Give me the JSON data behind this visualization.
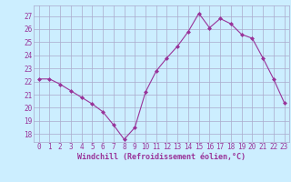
{
  "x": [
    0,
    1,
    2,
    3,
    4,
    5,
    6,
    7,
    8,
    9,
    10,
    11,
    12,
    13,
    14,
    15,
    16,
    17,
    18,
    19,
    20,
    21,
    22,
    23
  ],
  "y": [
    22.2,
    22.2,
    21.8,
    21.3,
    20.8,
    20.3,
    19.7,
    18.7,
    17.6,
    18.5,
    21.2,
    22.8,
    23.8,
    24.7,
    25.8,
    27.2,
    26.1,
    26.8,
    26.4,
    25.6,
    25.3,
    23.8,
    22.2,
    20.4
  ],
  "line_color": "#993399",
  "marker": "D",
  "marker_size": 2,
  "bg_color": "#cceeff",
  "grid_color": "#aaaacc",
  "xlabel": "Windchill (Refroidissement éolien,°C)",
  "xlabel_color": "#993399",
  "tick_color": "#993399",
  "ylabel_ticks": [
    18,
    19,
    20,
    21,
    22,
    23,
    24,
    25,
    26,
    27
  ],
  "ylim": [
    17.4,
    27.8
  ],
  "xlim": [
    -0.5,
    23.5
  ],
  "tick_fontsize": 5.5,
  "xlabel_fontsize": 6,
  "line_width": 0.8
}
